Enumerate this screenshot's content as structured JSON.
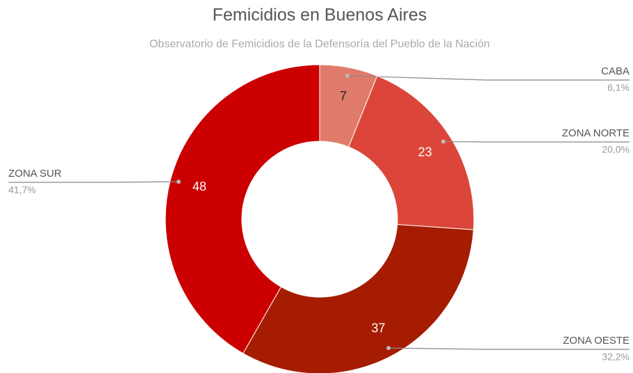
{
  "chart_data": {
    "type": "donut",
    "title": "Femicidios en Buenos Aires",
    "subtitle": "Observatorio de Femicidios de la Defensoría del Pueblo de la Nación",
    "categories": [
      "CABA",
      "ZONA NORTE",
      "ZONA OESTE",
      "ZONA SUR"
    ],
    "values": [
      7,
      23,
      37,
      48
    ],
    "percent_labels": [
      "6,1%",
      "20,0%",
      "32,2%",
      "41,7%"
    ],
    "colors": [
      "#e07b6b",
      "#dc463a",
      "#a51c00",
      "#cc0000"
    ]
  }
}
